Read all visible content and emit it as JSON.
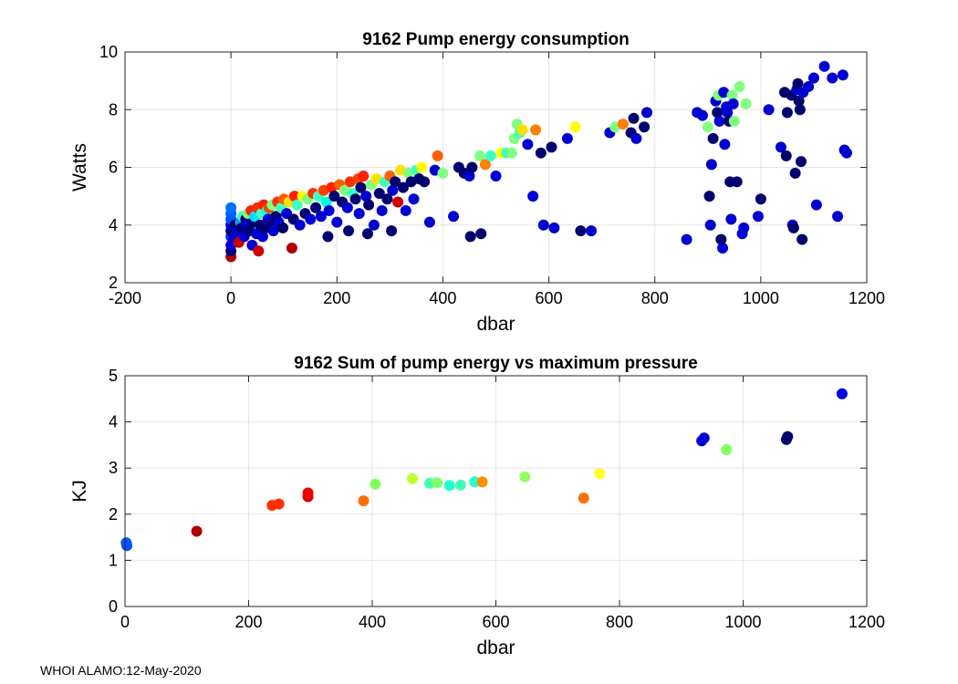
{
  "footer": "WHOI ALAMO:12-May-2020",
  "chart_data": [
    {
      "type": "scatter",
      "title": "9162 Pump energy consumption",
      "xlabel": "dbar",
      "ylabel": "Watts",
      "xlim": [
        -200,
        1200
      ],
      "ylim": [
        2,
        10
      ],
      "xticks": [
        -200,
        0,
        200,
        400,
        600,
        800,
        1000,
        1200
      ],
      "yticks": [
        2,
        4,
        6,
        8,
        10
      ],
      "grid": true,
      "points": [
        [
          0,
          2.9,
          "#b00000"
        ],
        [
          0,
          3.1,
          "#00006e"
        ],
        [
          0,
          3.3,
          "#0000d0"
        ],
        [
          0,
          3.6,
          "#0030ff"
        ],
        [
          0,
          3.8,
          "#00006e"
        ],
        [
          0,
          4.0,
          "#0000d0"
        ],
        [
          0,
          4.2,
          "#0050ff"
        ],
        [
          0,
          4.4,
          "#0060ff"
        ],
        [
          0,
          4.6,
          "#0070ff"
        ],
        [
          5,
          3.5,
          "#0000d0"
        ],
        [
          8,
          4.0,
          "#00006e"
        ],
        [
          10,
          3.7,
          "#0000d0"
        ],
        [
          15,
          3.4,
          "#d00000"
        ],
        [
          18,
          4.1,
          "#00a0ff"
        ],
        [
          20,
          3.9,
          "#00006e"
        ],
        [
          22,
          4.3,
          "#40ffc0"
        ],
        [
          25,
          3.6,
          "#0000d0"
        ],
        [
          28,
          4.2,
          "#00006e"
        ],
        [
          30,
          4.0,
          "#0000d0"
        ],
        [
          32,
          4.4,
          "#80ff80"
        ],
        [
          35,
          3.8,
          "#00006e"
        ],
        [
          38,
          4.5,
          "#ff2000"
        ],
        [
          40,
          3.3,
          "#0000d0"
        ],
        [
          42,
          4.1,
          "#00006e"
        ],
        [
          45,
          4.3,
          "#00e0ff"
        ],
        [
          48,
          3.7,
          "#0000d0"
        ],
        [
          50,
          4.6,
          "#ff3000"
        ],
        [
          52,
          3.1,
          "#d00000"
        ],
        [
          55,
          4.0,
          "#00006e"
        ],
        [
          58,
          4.4,
          "#40ffc0"
        ],
        [
          60,
          3.6,
          "#0000d0"
        ],
        [
          62,
          4.7,
          "#ff2000"
        ],
        [
          65,
          3.9,
          "#00006e"
        ],
        [
          68,
          4.5,
          "#00ffe0"
        ],
        [
          70,
          4.2,
          "#0000d0"
        ],
        [
          72,
          4.6,
          "#ff4000"
        ],
        [
          75,
          4.0,
          "#00006e"
        ],
        [
          78,
          4.7,
          "#80ff80"
        ],
        [
          80,
          3.8,
          "#0000d0"
        ],
        [
          85,
          4.3,
          "#00006e"
        ],
        [
          88,
          4.8,
          "#ff3000"
        ],
        [
          90,
          4.1,
          "#0000d0"
        ],
        [
          95,
          4.6,
          "#40ffc0"
        ],
        [
          98,
          3.9,
          "#00006e"
        ],
        [
          100,
          4.9,
          "#ff6000"
        ],
        [
          105,
          4.4,
          "#0000d0"
        ],
        [
          110,
          4.8,
          "#ffe000"
        ],
        [
          115,
          3.2,
          "#b00000"
        ],
        [
          118,
          4.2,
          "#00006e"
        ],
        [
          120,
          5.0,
          "#ff2000"
        ],
        [
          125,
          4.7,
          "#40ffc0"
        ],
        [
          130,
          4.0,
          "#0000d0"
        ],
        [
          135,
          5.0,
          "#ffff00"
        ],
        [
          140,
          4.4,
          "#00006e"
        ],
        [
          145,
          4.9,
          "#80ff80"
        ],
        [
          150,
          4.2,
          "#0000d0"
        ],
        [
          155,
          5.1,
          "#ff3000"
        ],
        [
          160,
          4.6,
          "#00006e"
        ],
        [
          165,
          5.0,
          "#40ffc0"
        ],
        [
          170,
          4.3,
          "#0000d0"
        ],
        [
          175,
          5.2,
          "#ff4000"
        ],
        [
          180,
          4.8,
          "#00ffe0"
        ],
        [
          183,
          3.6,
          "#00006e"
        ],
        [
          185,
          4.5,
          "#0000d0"
        ],
        [
          190,
          5.3,
          "#ff2000"
        ],
        [
          195,
          5.0,
          "#00006e"
        ],
        [
          200,
          4.1,
          "#0000d0"
        ],
        [
          205,
          5.4,
          "#ff6000"
        ],
        [
          210,
          4.8,
          "#00006e"
        ],
        [
          215,
          5.2,
          "#80ff80"
        ],
        [
          220,
          4.6,
          "#0000d0"
        ],
        [
          222,
          3.8,
          "#00006e"
        ],
        [
          225,
          5.5,
          "#ff3000"
        ],
        [
          230,
          5.1,
          "#40ffc0"
        ],
        [
          235,
          4.9,
          "#00006e"
        ],
        [
          240,
          5.6,
          "#ff4000"
        ],
        [
          242,
          4.4,
          "#0000d0"
        ],
        [
          245,
          5.3,
          "#00006e"
        ],
        [
          250,
          5.7,
          "#ff2000"
        ],
        [
          255,
          5.0,
          "#0000d0"
        ],
        [
          258,
          3.7,
          "#00006e"
        ],
        [
          260,
          4.7,
          "#00006e"
        ],
        [
          265,
          5.4,
          "#80ff80"
        ],
        [
          270,
          4.0,
          "#0000d0"
        ],
        [
          275,
          5.6,
          "#ffe000"
        ],
        [
          280,
          5.1,
          "#00006e"
        ],
        [
          285,
          4.5,
          "#0000d0"
        ],
        [
          290,
          5.5,
          "#40ffc0"
        ],
        [
          295,
          4.9,
          "#00006e"
        ],
        [
          300,
          5.7,
          "#ff6000"
        ],
        [
          303,
          3.8,
          "#00006e"
        ],
        [
          305,
          5.2,
          "#0000d0"
        ],
        [
          310,
          5.5,
          "#00006e"
        ],
        [
          315,
          4.8,
          "#d00000"
        ],
        [
          320,
          5.9,
          "#ffe000"
        ],
        [
          325,
          5.3,
          "#00006e"
        ],
        [
          330,
          4.5,
          "#0000d0"
        ],
        [
          335,
          5.8,
          "#80ff80"
        ],
        [
          340,
          5.5,
          "#00006e"
        ],
        [
          345,
          4.9,
          "#0000d0"
        ],
        [
          350,
          5.9,
          "#40ffc0"
        ],
        [
          355,
          5.6,
          "#00006e"
        ],
        [
          360,
          6.0,
          "#ffff00"
        ],
        [
          365,
          5.5,
          "#00006e"
        ],
        [
          375,
          4.1,
          "#0000d0"
        ],
        [
          385,
          5.9,
          "#0000d0"
        ],
        [
          390,
          6.4,
          "#ff6000"
        ],
        [
          400,
          5.8,
          "#80ff80"
        ],
        [
          420,
          4.3,
          "#0000d0"
        ],
        [
          430,
          6.0,
          "#00006e"
        ],
        [
          440,
          5.8,
          "#00006e"
        ],
        [
          450,
          5.7,
          "#0000d0"
        ],
        [
          452,
          3.6,
          "#00006e"
        ],
        [
          455,
          6.0,
          "#00006e"
        ],
        [
          470,
          6.4,
          "#80ff80"
        ],
        [
          472,
          3.7,
          "#00006e"
        ],
        [
          480,
          6.1,
          "#ff8000"
        ],
        [
          490,
          6.4,
          "#40ffc0"
        ],
        [
          500,
          5.7,
          "#0000d0"
        ],
        [
          510,
          6.5,
          "#ffff00"
        ],
        [
          520,
          6.5,
          "#40ffc0"
        ],
        [
          530,
          6.5,
          "#80ff80"
        ],
        [
          535,
          7.0,
          "#80ff80"
        ],
        [
          540,
          7.5,
          "#80ff80"
        ],
        [
          545,
          7.2,
          "#40ffc0"
        ],
        [
          550,
          7.3,
          "#ffe000"
        ],
        [
          560,
          6.8,
          "#0000d0"
        ],
        [
          570,
          5.0,
          "#0000d0"
        ],
        [
          575,
          7.3,
          "#ff8000"
        ],
        [
          585,
          6.5,
          "#00006e"
        ],
        [
          590,
          4.0,
          "#0000d0"
        ],
        [
          605,
          6.7,
          "#00006e"
        ],
        [
          610,
          3.9,
          "#0000d0"
        ],
        [
          635,
          7.0,
          "#0000d0"
        ],
        [
          650,
          7.4,
          "#ffff00"
        ],
        [
          660,
          3.8,
          "#00006e"
        ],
        [
          680,
          3.8,
          "#0000d0"
        ],
        [
          715,
          7.2,
          "#0000d0"
        ],
        [
          725,
          7.4,
          "#80ff80"
        ],
        [
          740,
          7.5,
          "#ff8000"
        ],
        [
          755,
          7.2,
          "#00006e"
        ],
        [
          760,
          7.7,
          "#00006e"
        ],
        [
          765,
          7.0,
          "#0000d0"
        ],
        [
          780,
          7.4,
          "#00006e"
        ],
        [
          785,
          7.9,
          "#0000d0"
        ],
        [
          860,
          3.5,
          "#0000d0"
        ],
        [
          880,
          7.9,
          "#0000d0"
        ],
        [
          890,
          7.8,
          "#0000d0"
        ],
        [
          900,
          7.4,
          "#80ff80"
        ],
        [
          903,
          5.0,
          "#00006e"
        ],
        [
          905,
          4.0,
          "#0000d0"
        ],
        [
          907,
          6.1,
          "#0000d0"
        ],
        [
          910,
          7.0,
          "#00006e"
        ],
        [
          915,
          8.3,
          "#0000d0"
        ],
        [
          918,
          7.9,
          "#00006e"
        ],
        [
          920,
          8.5,
          "#80ff80"
        ],
        [
          922,
          7.6,
          "#0000d0"
        ],
        [
          925,
          3.5,
          "#00006e"
        ],
        [
          928,
          3.2,
          "#0000d0"
        ],
        [
          930,
          8.6,
          "#0000d0"
        ],
        [
          932,
          6.8,
          "#0000d0"
        ],
        [
          935,
          8.1,
          "#0000d0"
        ],
        [
          937,
          7.9,
          "#0000d0"
        ],
        [
          940,
          7.6,
          "#00006e"
        ],
        [
          942,
          5.5,
          "#00006e"
        ],
        [
          944,
          4.2,
          "#0000d0"
        ],
        [
          946,
          8.5,
          "#80ff80"
        ],
        [
          948,
          8.2,
          "#0000d0"
        ],
        [
          950,
          7.6,
          "#80ff80"
        ],
        [
          955,
          5.5,
          "#00006e"
        ],
        [
          960,
          8.8,
          "#80ff80"
        ],
        [
          965,
          3.7,
          "#0000d0"
        ],
        [
          968,
          3.9,
          "#0000d0"
        ],
        [
          972,
          8.2,
          "#80ff80"
        ],
        [
          995,
          4.3,
          "#0000d0"
        ],
        [
          1000,
          4.9,
          "#00006e"
        ],
        [
          1015,
          8.0,
          "#0000d0"
        ],
        [
          1038,
          6.7,
          "#0000d0"
        ],
        [
          1045,
          8.6,
          "#00006e"
        ],
        [
          1048,
          6.4,
          "#00006e"
        ],
        [
          1050,
          7.9,
          "#00006e"
        ],
        [
          1058,
          8.5,
          "#00006e"
        ],
        [
          1060,
          4.0,
          "#0000d0"
        ],
        [
          1062,
          3.9,
          "#00006e"
        ],
        [
          1065,
          5.8,
          "#00006e"
        ],
        [
          1068,
          8.7,
          "#0000d0"
        ],
        [
          1070,
          8.9,
          "#00006e"
        ],
        [
          1072,
          8.3,
          "#00006e"
        ],
        [
          1074,
          8.0,
          "#00006e"
        ],
        [
          1076,
          6.2,
          "#00006e"
        ],
        [
          1078,
          3.5,
          "#00006e"
        ],
        [
          1080,
          8.6,
          "#0000d0"
        ],
        [
          1090,
          8.8,
          "#0000d0"
        ],
        [
          1100,
          9.1,
          "#0000d0"
        ],
        [
          1105,
          4.7,
          "#0000d0"
        ],
        [
          1120,
          9.5,
          "#0000d0"
        ],
        [
          1135,
          9.1,
          "#0000d0"
        ],
        [
          1145,
          4.3,
          "#0000d0"
        ],
        [
          1155,
          9.2,
          "#0000d0"
        ],
        [
          1158,
          6.6,
          "#0000d0"
        ],
        [
          1162,
          6.5,
          "#0000d0"
        ]
      ]
    },
    {
      "type": "scatter",
      "title": "9162 Sum of pump energy vs maximum pressure",
      "xlabel": "dbar",
      "ylabel": "KJ",
      "xlim": [
        0,
        1200
      ],
      "ylim": [
        0,
        5
      ],
      "xticks": [
        0,
        200,
        400,
        600,
        800,
        1000,
        1200
      ],
      "yticks": [
        0,
        1,
        2,
        3,
        4,
        5
      ],
      "grid": true,
      "points": [
        [
          2,
          1.38,
          "#0060ff"
        ],
        [
          3,
          1.32,
          "#0050ff"
        ],
        [
          116,
          1.63,
          "#b00000"
        ],
        [
          238,
          2.19,
          "#ff3000"
        ],
        [
          249,
          2.22,
          "#ff3000"
        ],
        [
          296,
          2.38,
          "#dd0000"
        ],
        [
          296,
          2.46,
          "#ee0000"
        ],
        [
          386,
          2.29,
          "#ff7000"
        ],
        [
          405,
          2.65,
          "#80ff60"
        ],
        [
          465,
          2.77,
          "#c0ff30"
        ],
        [
          493,
          2.67,
          "#40ffb0"
        ],
        [
          505,
          2.68,
          "#80ff70"
        ],
        [
          525,
          2.62,
          "#20ffd0"
        ],
        [
          543,
          2.63,
          "#40ffb0"
        ],
        [
          566,
          2.7,
          "#20ffd0"
        ],
        [
          578,
          2.7,
          "#ff9000"
        ],
        [
          647,
          2.81,
          "#90ff60"
        ],
        [
          742,
          2.35,
          "#ff7000"
        ],
        [
          768,
          2.88,
          "#ffff20"
        ],
        [
          933,
          3.59,
          "#0000d0"
        ],
        [
          937,
          3.65,
          "#0000e0"
        ],
        [
          973,
          3.4,
          "#80ff60"
        ],
        [
          1070,
          3.62,
          "#00006e"
        ],
        [
          1072,
          3.68,
          "#00006e"
        ],
        [
          1160,
          4.61,
          "#0000e0"
        ]
      ]
    }
  ]
}
